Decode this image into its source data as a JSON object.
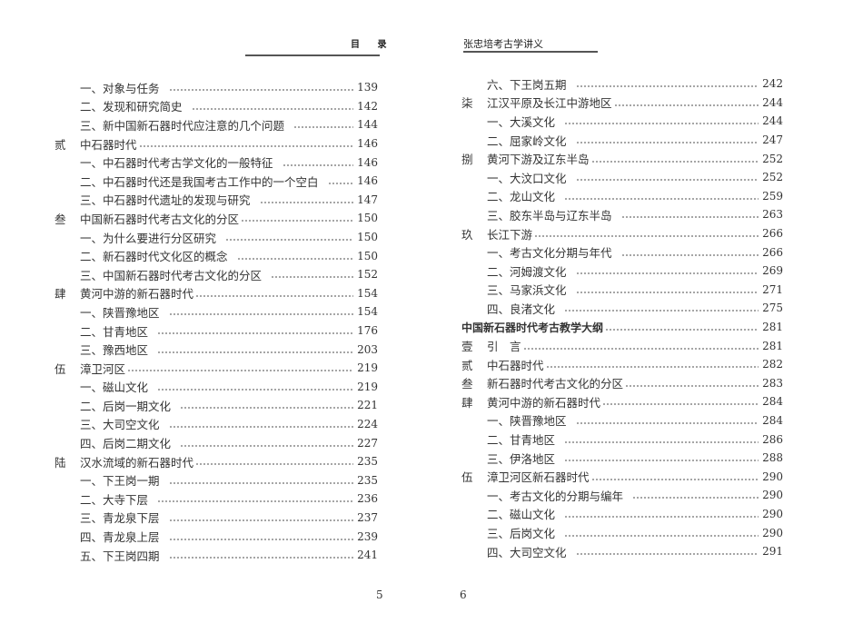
{
  "left_page": {
    "header": "目 录",
    "page_number": "5",
    "entries": [
      {
        "num": "",
        "title": "一、对象与任务",
        "page": "139",
        "level": "sub"
      },
      {
        "num": "",
        "title": "二、发现和研究简史",
        "page": "142",
        "level": "sub"
      },
      {
        "num": "",
        "title": "三、新中国新石器时代应注意的几个问题",
        "page": "144",
        "level": "sub"
      },
      {
        "num": "贰",
        "title": "中石器时代",
        "page": "146",
        "level": "chapter"
      },
      {
        "num": "",
        "title": "一、中石器时代考古学文化的一般特征",
        "page": "146",
        "level": "sub"
      },
      {
        "num": "",
        "title": "二、中石器时代还是我国考古工作中的一个空白",
        "page": "146",
        "level": "sub"
      },
      {
        "num": "",
        "title": "三、中石器时代遗址的发现与研究",
        "page": "147",
        "level": "sub"
      },
      {
        "num": "叁",
        "title": "中国新石器时代考古文化的分区",
        "page": "150",
        "level": "chapter"
      },
      {
        "num": "",
        "title": "一、为什么要进行分区研究",
        "page": "150",
        "level": "sub"
      },
      {
        "num": "",
        "title": "二、新石器时代文化区的概念",
        "page": "150",
        "level": "sub"
      },
      {
        "num": "",
        "title": "三、中国新石器时代考古文化的分区",
        "page": "152",
        "level": "sub"
      },
      {
        "num": "肆",
        "title": "黄河中游的新石器时代",
        "page": "154",
        "level": "chapter"
      },
      {
        "num": "",
        "title": "一、陕晋豫地区",
        "page": "154",
        "level": "sub"
      },
      {
        "num": "",
        "title": "二、甘青地区",
        "page": "176",
        "level": "sub"
      },
      {
        "num": "",
        "title": "三、豫西地区",
        "page": "203",
        "level": "sub"
      },
      {
        "num": "伍",
        "title": "漳卫河区",
        "page": "219",
        "level": "chapter"
      },
      {
        "num": "",
        "title": "一、磁山文化",
        "page": "219",
        "level": "sub"
      },
      {
        "num": "",
        "title": "二、后岗一期文化",
        "page": "221",
        "level": "sub"
      },
      {
        "num": "",
        "title": "三、大司空文化",
        "page": "224",
        "level": "sub"
      },
      {
        "num": "",
        "title": "四、后岗二期文化",
        "page": "227",
        "level": "sub"
      },
      {
        "num": "陆",
        "title": "汉水流域的新石器时代",
        "page": "235",
        "level": "chapter"
      },
      {
        "num": "",
        "title": "一、下王岗一期",
        "page": "235",
        "level": "sub"
      },
      {
        "num": "",
        "title": "二、大寺下层",
        "page": "236",
        "level": "sub"
      },
      {
        "num": "",
        "title": "三、青龙泉下层",
        "page": "237",
        "level": "sub"
      },
      {
        "num": "",
        "title": "四、青龙泉上层",
        "page": "239",
        "level": "sub"
      },
      {
        "num": "",
        "title": "五、下王岗四期",
        "page": "241",
        "level": "sub"
      }
    ]
  },
  "right_page": {
    "header": "张忠培考古学讲义",
    "page_number": "6",
    "entries": [
      {
        "num": "",
        "title": "六、下王岗五期",
        "page": "242",
        "level": "sub"
      },
      {
        "num": "柒",
        "title": "江汉平原及长江中游地区",
        "page": "244",
        "level": "chapter"
      },
      {
        "num": "",
        "title": "一、大溪文化",
        "page": "244",
        "level": "sub"
      },
      {
        "num": "",
        "title": "二、屈家岭文化",
        "page": "247",
        "level": "sub"
      },
      {
        "num": "捌",
        "title": "黄河下游及辽东半岛",
        "page": "252",
        "level": "chapter"
      },
      {
        "num": "",
        "title": "一、大汶口文化",
        "page": "252",
        "level": "sub"
      },
      {
        "num": "",
        "title": "二、龙山文化",
        "page": "259",
        "level": "sub"
      },
      {
        "num": "",
        "title": "三、胶东半岛与辽东半岛",
        "page": "263",
        "level": "sub"
      },
      {
        "num": "玖",
        "title": "长江下游",
        "page": "266",
        "level": "chapter"
      },
      {
        "num": "",
        "title": "一、考古文化分期与年代",
        "page": "266",
        "level": "sub"
      },
      {
        "num": "",
        "title": "二、河姆渡文化",
        "page": "269",
        "level": "sub"
      },
      {
        "num": "",
        "title": "三、马家浜文化",
        "page": "271",
        "level": "sub"
      },
      {
        "num": "",
        "title": "四、良渚文化",
        "page": "275",
        "level": "sub"
      },
      {
        "num": "",
        "title": "中国新石器时代考古教学大纲",
        "page": "281",
        "level": "part"
      },
      {
        "num": "壹",
        "title": "引　言",
        "page": "281",
        "level": "chapter"
      },
      {
        "num": "贰",
        "title": "中石器时代",
        "page": "282",
        "level": "chapter"
      },
      {
        "num": "叁",
        "title": "新石器时代考古文化的分区",
        "page": "283",
        "level": "chapter"
      },
      {
        "num": "肆",
        "title": "黄河中游的新石器时代",
        "page": "284",
        "level": "chapter"
      },
      {
        "num": "",
        "title": "一、陕晋豫地区",
        "page": "284",
        "level": "sub"
      },
      {
        "num": "",
        "title": "二、甘青地区",
        "page": "286",
        "level": "sub"
      },
      {
        "num": "",
        "title": "三、伊洛地区",
        "page": "288",
        "level": "sub"
      },
      {
        "num": "伍",
        "title": "漳卫河区新石器时代",
        "page": "290",
        "level": "chapter"
      },
      {
        "num": "",
        "title": "一、考古文化的分期与编年",
        "page": "290",
        "level": "sub"
      },
      {
        "num": "",
        "title": "二、磁山文化",
        "page": "290",
        "level": "sub"
      },
      {
        "num": "",
        "title": "三、后岗文化",
        "page": "290",
        "level": "sub"
      },
      {
        "num": "",
        "title": "四、大司空文化",
        "page": "291",
        "level": "sub"
      }
    ]
  }
}
